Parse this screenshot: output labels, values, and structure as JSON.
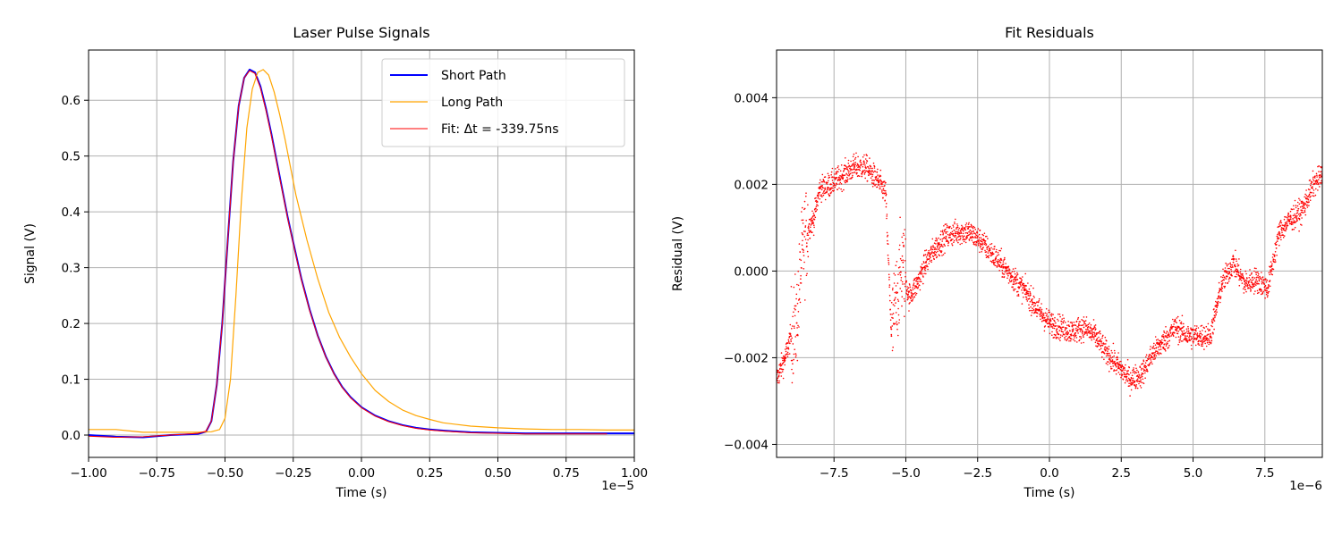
{
  "chart_data": [
    {
      "type": "line",
      "title": "Laser Pulse Signals",
      "xlabel": "Time (s)",
      "ylabel": "Signal (V)",
      "x_offset_text": "1e−5",
      "xlim": [
        -1.0,
        1.0
      ],
      "ylim": [
        -0.04,
        0.69
      ],
      "x_ticks": [
        -1.0,
        -0.75,
        -0.5,
        -0.25,
        0.0,
        0.25,
        0.5,
        0.75,
        1.0
      ],
      "x_tick_labels": [
        "−1.00",
        "−0.75",
        "−0.50",
        "−0.25",
        "0.00",
        "0.25",
        "0.50",
        "0.75",
        "1.00"
      ],
      "y_ticks": [
        0.0,
        0.1,
        0.2,
        0.3,
        0.4,
        0.5,
        0.6
      ],
      "y_tick_labels": [
        "0.0",
        "0.1",
        "0.2",
        "0.3",
        "0.4",
        "0.5",
        "0.6"
      ],
      "grid": true,
      "legend_position": "upper-right",
      "series": [
        {
          "name": "Short Path",
          "color": "#0000ff",
          "x": [
            -1.0,
            -0.9,
            -0.8,
            -0.7,
            -0.6,
            -0.57,
            -0.55,
            -0.53,
            -0.51,
            -0.49,
            -0.47,
            -0.45,
            -0.43,
            -0.41,
            -0.39,
            -0.37,
            -0.35,
            -0.33,
            -0.31,
            -0.29,
            -0.27,
            -0.25,
            -0.22,
            -0.19,
            -0.16,
            -0.13,
            -0.1,
            -0.07,
            -0.04,
            0.0,
            0.05,
            0.1,
            0.15,
            0.2,
            0.25,
            0.3,
            0.4,
            0.5,
            0.6,
            0.7,
            0.8,
            0.9,
            1.0
          ],
          "y": [
            0.0,
            -0.003,
            -0.004,
            0.0,
            0.002,
            0.006,
            0.025,
            0.09,
            0.2,
            0.35,
            0.49,
            0.59,
            0.64,
            0.655,
            0.65,
            0.625,
            0.585,
            0.54,
            0.49,
            0.44,
            0.39,
            0.345,
            0.28,
            0.225,
            0.178,
            0.14,
            0.11,
            0.086,
            0.068,
            0.05,
            0.035,
            0.025,
            0.018,
            0.013,
            0.01,
            0.008,
            0.005,
            0.004,
            0.003,
            0.003,
            0.003,
            0.003,
            0.003
          ]
        },
        {
          "name": "Long Path",
          "color": "#ffa500",
          "x": [
            -1.0,
            -0.9,
            -0.8,
            -0.7,
            -0.6,
            -0.55,
            -0.52,
            -0.5,
            -0.48,
            -0.46,
            -0.44,
            -0.42,
            -0.4,
            -0.38,
            -0.36,
            -0.34,
            -0.32,
            -0.3,
            -0.28,
            -0.26,
            -0.24,
            -0.2,
            -0.16,
            -0.12,
            -0.08,
            -0.04,
            0.0,
            0.05,
            0.1,
            0.15,
            0.2,
            0.25,
            0.3,
            0.4,
            0.5,
            0.6,
            0.7,
            0.8,
            0.9,
            1.0
          ],
          "y": [
            0.01,
            0.01,
            0.005,
            0.005,
            0.005,
            0.006,
            0.01,
            0.03,
            0.1,
            0.25,
            0.42,
            0.55,
            0.62,
            0.65,
            0.655,
            0.645,
            0.615,
            0.575,
            0.53,
            0.48,
            0.43,
            0.35,
            0.28,
            0.22,
            0.175,
            0.14,
            0.11,
            0.08,
            0.06,
            0.045,
            0.035,
            0.028,
            0.022,
            0.016,
            0.013,
            0.011,
            0.01,
            0.01,
            0.009,
            0.009
          ]
        },
        {
          "name": "Fit: Δt = -339.75ns",
          "color": "#ff0000",
          "x": [
            -1.0,
            -0.9,
            -0.8,
            -0.7,
            -0.6,
            -0.57,
            -0.55,
            -0.53,
            -0.51,
            -0.49,
            -0.47,
            -0.45,
            -0.43,
            -0.41,
            -0.39,
            -0.37,
            -0.35,
            -0.33,
            -0.31,
            -0.29,
            -0.27,
            -0.25,
            -0.22,
            -0.19,
            -0.16,
            -0.13,
            -0.1,
            -0.07,
            -0.04,
            0.0,
            0.05,
            0.1,
            0.15,
            0.2,
            0.25,
            0.3,
            0.4,
            0.5,
            0.6,
            0.7,
            0.8,
            0.9
          ],
          "y": [
            -0.002,
            -0.004,
            -0.003,
            0.0,
            0.003,
            0.007,
            0.025,
            0.09,
            0.2,
            0.35,
            0.49,
            0.59,
            0.64,
            0.653,
            0.648,
            0.622,
            0.582,
            0.537,
            0.487,
            0.437,
            0.388,
            0.343,
            0.278,
            0.223,
            0.177,
            0.139,
            0.109,
            0.085,
            0.067,
            0.049,
            0.034,
            0.024,
            0.017,
            0.012,
            0.009,
            0.007,
            0.004,
            0.003,
            0.002,
            0.002,
            0.002,
            0.002
          ]
        }
      ]
    },
    {
      "type": "scatter",
      "title": "Fit Residuals",
      "xlabel": "Time (s)",
      "ylabel": "Residual (V)",
      "x_offset_text": "1e−6",
      "xlim": [
        -9.5,
        9.5
      ],
      "ylim": [
        -0.0043,
        0.0051
      ],
      "x_ticks": [
        -7.5,
        -5.0,
        -2.5,
        0.0,
        2.5,
        5.0,
        7.5
      ],
      "x_tick_labels": [
        "−7.5",
        "−5.0",
        "−2.5",
        "0.0",
        "2.5",
        "5.0",
        "7.5"
      ],
      "y_ticks": [
        -0.004,
        -0.002,
        0.0,
        0.002,
        0.004
      ],
      "y_tick_labels": [
        "−0.004",
        "−0.002",
        "0.000",
        "0.002",
        "0.004"
      ],
      "grid": true,
      "series": [
        {
          "color": "#ff0000",
          "x": [
            -9.5,
            -9.2,
            -9.0,
            -8.8,
            -8.6,
            -8.4,
            -8.2,
            -8.0,
            -7.6,
            -7.2,
            -6.8,
            -6.4,
            -6.0,
            -5.7,
            -5.5,
            -5.3,
            -5.1,
            -4.9,
            -4.6,
            -4.3,
            -4.0,
            -3.6,
            -3.2,
            -2.8,
            -2.4,
            -2.0,
            -1.6,
            -1.2,
            -0.8,
            -0.4,
            0.0,
            0.4,
            0.8,
            1.2,
            1.6,
            2.0,
            2.4,
            2.8,
            3.2,
            3.6,
            4.0,
            4.4,
            4.8,
            5.2,
            5.6,
            6.0,
            6.4,
            6.8,
            7.2,
            7.6,
            8.0,
            8.4,
            8.8,
            9.2,
            9.5
          ],
          "y": [
            -0.0025,
            -0.002,
            -0.0015,
            -0.0012,
            0.0005,
            0.001,
            0.0012,
            0.0019,
            0.002,
            0.0022,
            0.0024,
            0.0024,
            0.0021,
            0.0018,
            -0.0015,
            -0.0005,
            0.0002,
            -0.0006,
            -0.0003,
            0.0002,
            0.0005,
            0.0008,
            0.0009,
            0.0009,
            0.0007,
            0.0004,
            0.0001,
            -0.0002,
            -0.0005,
            -0.0009,
            -0.0012,
            -0.0013,
            -0.0014,
            -0.0013,
            -0.0015,
            -0.0019,
            -0.0022,
            -0.0025,
            -0.0024,
            -0.0019,
            -0.0016,
            -0.0013,
            -0.0015,
            -0.0015,
            -0.0015,
            -0.0003,
            0.0002,
            -0.0003,
            -0.0002,
            -0.0004,
            0.0009,
            0.0012,
            0.0014,
            0.002,
            0.0022
          ]
        }
      ]
    }
  ]
}
